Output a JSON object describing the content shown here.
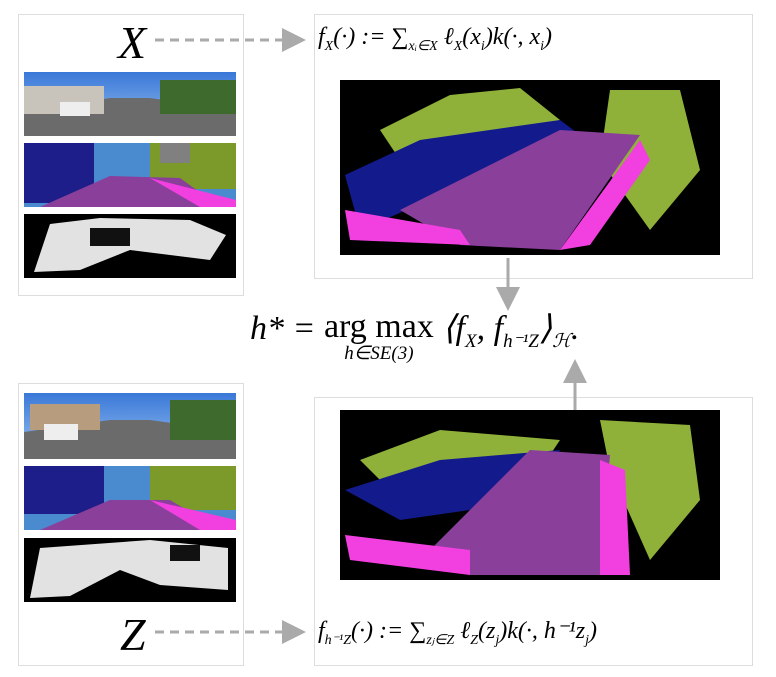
{
  "labels": {
    "top": "X",
    "bottom": "Z"
  },
  "formula_top": [
    {
      "text": "f",
      "sub": "X"
    },
    {
      "text": "(·) := ∑",
      "sub": "xᵢ∈X"
    },
    {
      "text": " ℓ",
      "sub": "X"
    },
    {
      "text": "(x",
      "sub": "i"
    },
    {
      "text": ")k(·, x",
      "sub": "i"
    },
    {
      "text": ")"
    }
  ],
  "formula_bottom": [
    {
      "text": "f",
      "sub": "h⁻¹Z"
    },
    {
      "text": "(·) := ∑",
      "sub": "zⱼ∈Z"
    },
    {
      "text": " ℓ",
      "sub": "Z"
    },
    {
      "text": "(z",
      "sub": "j"
    },
    {
      "text": ")k(·, h⁻¹z",
      "sub": "j"
    },
    {
      "text": ")"
    }
  ],
  "objective": [
    {
      "text": "h* = "
    },
    {
      "text": "arg max",
      "under": "h∈SE(3)"
    },
    {
      "text": " ⟨f",
      "sub": "X"
    },
    {
      "text": ", f",
      "sub": "h⁻¹Z"
    },
    {
      "text": "⟩",
      "sub": "ℋ"
    },
    {
      "text": "."
    }
  ]
}
